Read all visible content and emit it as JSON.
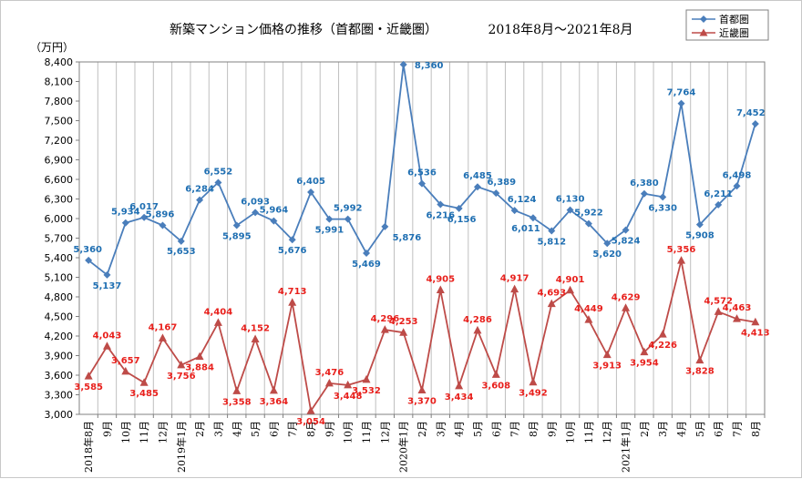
{
  "chart_data": {
    "type": "line",
    "title": "新築マンション価格の推移（首都圏・近畿圏）",
    "date_range": "2018年8月～2021年8月",
    "unit": "（万円）",
    "ylim": [
      3000,
      8400
    ],
    "ytick_values": [
      3000,
      3300,
      3600,
      3900,
      4200,
      4500,
      4800,
      5100,
      5400,
      5700,
      6000,
      6300,
      6600,
      6900,
      7200,
      7500,
      7800,
      8100,
      8400
    ],
    "ytick_labels": [
      "3,000",
      "3,300",
      "3,600",
      "3,900",
      "4,200",
      "4,500",
      "4,800",
      "5,100",
      "5,400",
      "5,700",
      "6,000",
      "6,300",
      "6,600",
      "6,900",
      "7,200",
      "7,500",
      "7,800",
      "8,100",
      "8,400"
    ],
    "grid": "vertical lines at each month",
    "legend_position": "top-right",
    "categories": [
      "2018年8月",
      "9月",
      "10月",
      "11月",
      "12月",
      "2019年1月",
      "2月",
      "3月",
      "4月",
      "5月",
      "6月",
      "7月",
      "8月",
      "9月",
      "10月",
      "11月",
      "12月",
      "2020年1月",
      "2月",
      "3月",
      "4月",
      "5月",
      "6月",
      "7月",
      "8月",
      "9月",
      "10月",
      "11月",
      "12月",
      "2021年1月",
      "2月",
      "3月",
      "4月",
      "5月",
      "6月",
      "7月",
      "8月"
    ],
    "series": [
      {
        "name": "首都圏",
        "color": "#4a7ebb",
        "label_color": "#1f6fb2",
        "marker": "diamond",
        "values": [
          5360,
          5137,
          5934,
          6017,
          5896,
          5653,
          6284,
          6552,
          5895,
          6093,
          5964,
          5676,
          6405,
          5991,
          5992,
          5469,
          5876,
          8360,
          6536,
          6216,
          6156,
          6485,
          6389,
          6124,
          6011,
          5812,
          6130,
          5922,
          5620,
          5824,
          6380,
          6330,
          7764,
          5908,
          6211,
          6498,
          7452
        ],
        "labels": [
          "5,360",
          "5,137",
          "5,934",
          "6,017",
          "5,896",
          "5,653",
          "6,284",
          "6,552",
          "5,895",
          "6,093",
          "5,964",
          "5,676",
          "6,405",
          "5,991",
          "5,992",
          "5,469",
          "5,876",
          "8,360",
          "6,536",
          "6,216",
          "6,156",
          "6,485",
          "6,389",
          "6,124",
          "6,011",
          "5,812",
          "6,130",
          "5,922",
          "5,620",
          "5,824",
          "6,380",
          "6,330",
          "7,764",
          "5,908",
          "6,211",
          "6,498",
          "7,452"
        ]
      },
      {
        "name": "近畿圏",
        "color": "#be4b48",
        "label_color": "#e8201c",
        "marker": "triangle",
        "values": [
          3585,
          4043,
          3657,
          3485,
          4167,
          3756,
          3884,
          4404,
          3358,
          4152,
          3364,
          4713,
          3054,
          3476,
          3448,
          3532,
          4296,
          4253,
          3370,
          4905,
          3434,
          4286,
          3608,
          4917,
          3492,
          4693,
          4901,
          4449,
          3913,
          4629,
          3954,
          4226,
          5356,
          3828,
          4572,
          4463,
          4413
        ],
        "labels": [
          "3,585",
          "4,043",
          "3,657",
          "3,485",
          "4,167",
          "3,756",
          "3,884",
          "4,404",
          "3,358",
          "4,152",
          "3,364",
          "4,713",
          "3,054",
          "3,476",
          "3,448",
          "3,532",
          "4,296",
          "4,253",
          "3,370",
          "4,905",
          "3,434",
          "4,286",
          "3,608",
          "4,917",
          "3,492",
          "4,693",
          "4,901",
          "4,449",
          "3,913",
          "4,629",
          "3,954",
          "4,226",
          "5,356",
          "3,828",
          "4,572",
          "4,463",
          "4,413"
        ]
      }
    ]
  }
}
